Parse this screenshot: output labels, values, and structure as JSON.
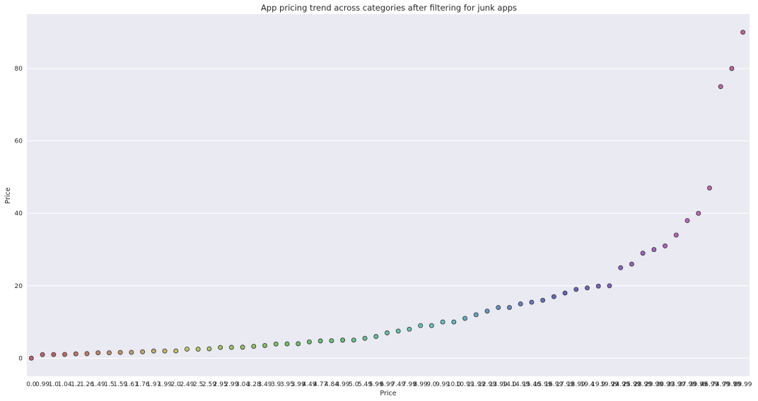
{
  "chart_data": {
    "type": "scatter",
    "title": "App pricing trend across categories after filtering for junk apps",
    "xlabel": "Price",
    "ylabel": "Price",
    "ylim": [
      -5,
      95
    ],
    "yticks": [
      0,
      20,
      40,
      60,
      80
    ],
    "grid": true,
    "legend": "none",
    "categories": [
      "0.0",
      "0.99",
      "1.0",
      "1.04",
      "1.2",
      "1.26",
      "1.49",
      "1.5",
      "1.59",
      "1.61",
      "1.76",
      "1.97",
      "1.99",
      "2.0",
      "2.49",
      "2.5",
      "2.59",
      "2.95",
      "2.99",
      "3.04",
      "3.28",
      "3.49",
      "3.9",
      "3.95",
      "3.99",
      "4.49",
      "4.77",
      "4.84",
      "4.99",
      "5.0",
      "5.49",
      "5.99",
      "6.99",
      "7.49",
      "7.99",
      "8.99",
      "9.0",
      "9.99",
      "10.0",
      "10.99",
      "11.99",
      "12.99",
      "13.99",
      "14.0",
      "14.99",
      "15.46",
      "15.99",
      "16.99",
      "17.99",
      "18.99",
      "19.4",
      "19.9",
      "19.99",
      "24.99",
      "25.99",
      "28.99",
      "29.99",
      "30.99",
      "33.99",
      "37.99",
      "39.99",
      "46.99",
      "74.99",
      "79.99",
      "89.99"
    ],
    "values": [
      0.0,
      0.99,
      1.0,
      1.04,
      1.2,
      1.26,
      1.49,
      1.5,
      1.59,
      1.61,
      1.76,
      1.97,
      1.99,
      2.0,
      2.49,
      2.5,
      2.59,
      2.95,
      2.99,
      3.04,
      3.28,
      3.49,
      3.9,
      3.95,
      3.99,
      4.49,
      4.77,
      4.84,
      4.99,
      5.0,
      5.49,
      5.99,
      6.99,
      7.49,
      7.99,
      8.99,
      9.0,
      9.99,
      10.0,
      10.99,
      11.99,
      12.99,
      13.99,
      14.0,
      14.99,
      15.46,
      15.99,
      16.99,
      17.99,
      18.99,
      19.4,
      19.9,
      19.99,
      24.99,
      25.99,
      28.99,
      29.99,
      30.99,
      33.99,
      37.99,
      39.99,
      46.99,
      74.99,
      79.99,
      89.99
    ],
    "tick_labels": [
      "0.0",
      "0.99",
      "1.0",
      "1.04",
      "1.2",
      "1.26",
      "1.49",
      "1.5",
      "1.59",
      "1.61",
      "1.76",
      "1.97",
      "1.99",
      "2.0",
      "2.49",
      "2.5",
      "2.59",
      "2.95",
      "2.99",
      "3.04",
      "3.28",
      "3.49",
      "3.9",
      "3.95",
      "3.99",
      "4.49",
      "4.77",
      "4.84",
      "4.99",
      "5.0",
      "5.49",
      "5.99",
      "6.99",
      "7.49",
      "7.99",
      "8.99",
      "9.0",
      "9.99",
      "10.0",
      "10.99",
      "11.99",
      "12.99",
      "13.99",
      "14.0",
      "14.99",
      "15.46",
      "15.99",
      "16.99",
      "17.99",
      "18.99",
      "19.4",
      "19.9",
      "19.99",
      "24.99",
      "25.99",
      "28.99",
      "29.99",
      "30.99",
      "33.99",
      "37.99",
      "39.99",
      "46.99",
      "74.99",
      "79.99",
      "89.99"
    ]
  }
}
